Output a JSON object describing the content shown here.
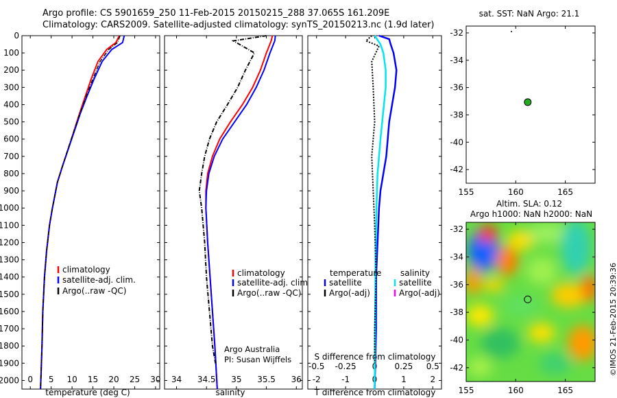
{
  "header": {
    "line1": "Argo profile: CS 5901659_250 11-Feb-2015 20150215_288 37.065S 161.209E",
    "line2": "Climatology: CARS2009. Satellite-adjusted climatology: synTS_20150213.nc (1.9d later)"
  },
  "footer": {
    "credit_line1": "Argo Australia",
    "credit_line2": "PI: Susan Wijffels",
    "imos_stamp": "©IMOS 21-Feb-2015 20:39:36"
  },
  "colors": {
    "climatology": "#ff0000",
    "satellite": "#0000ff",
    "argo": "#000000",
    "salinity_satellite": "#00e5ee",
    "salinity_argo": "#ff00ff",
    "float_marker": "#22aa22"
  },
  "chart_data": [
    {
      "type": "line",
      "title": "",
      "xlabel": "temperature (deg C)",
      "ylabel": "",
      "xlim": [
        -2,
        31
      ],
      "ylim": [
        2050,
        0
      ],
      "xticks": [
        0,
        5,
        10,
        15,
        20,
        25,
        30
      ],
      "yticks": [
        0,
        100,
        200,
        300,
        400,
        500,
        600,
        700,
        800,
        900,
        1000,
        1100,
        1200,
        1300,
        1400,
        1500,
        1600,
        1700,
        1800,
        1900,
        2000
      ],
      "legend": [
        "climatology",
        "satellite-adj. clim.",
        "Argo(..raw -QC)"
      ],
      "series": [
        {
          "name": "climatology",
          "color": "#ff0000",
          "x": [
            21.3,
            20.5,
            18.3,
            16.2,
            14.6,
            13.2,
            11.8,
            10.5,
            9.2,
            7.8,
            6.5,
            5.3,
            4.6,
            3.9,
            3.4,
            3.0,
            2.8,
            2.6,
            2.45
          ],
          "y": [
            0,
            40,
            80,
            150,
            250,
            350,
            450,
            550,
            650,
            750,
            850,
            1000,
            1100,
            1250,
            1400,
            1600,
            1800,
            1950,
            2050
          ]
        },
        {
          "name": "satellite-adj. clim.",
          "color": "#0000ff",
          "x": [
            22.5,
            22.1,
            19.5,
            17.2,
            15.3,
            13.6,
            12.0,
            10.6,
            9.2,
            7.8,
            6.5,
            5.3,
            4.6,
            3.9,
            3.4,
            3.0,
            2.8,
            2.6,
            2.45
          ],
          "y": [
            0,
            40,
            80,
            150,
            250,
            350,
            450,
            550,
            650,
            750,
            850,
            1000,
            1100,
            1250,
            1400,
            1600,
            1800,
            1950,
            2050
          ]
        },
        {
          "name": "Argo(..raw -QC)",
          "color": "#000000",
          "x": [
            21.5,
            20.9,
            18.8,
            16.7,
            15.0,
            13.4,
            11.9,
            10.5,
            9.1,
            7.8,
            6.5,
            5.3,
            4.6,
            3.9,
            3.4,
            3.0,
            2.8,
            2.6,
            2.45
          ],
          "y": [
            0,
            40,
            80,
            150,
            250,
            350,
            450,
            550,
            650,
            750,
            850,
            1000,
            1100,
            1250,
            1400,
            1600,
            1800,
            1950,
            2050
          ]
        }
      ]
    },
    {
      "type": "line",
      "title": "",
      "xlabel": "salinity",
      "ylabel": "",
      "xlim": [
        33.8,
        36.1
      ],
      "ylim": [
        2050,
        0
      ],
      "xticks": [
        34,
        34.5,
        35,
        35.5,
        36
      ],
      "legend": [
        "climatology",
        "satellite-adj. clim.",
        "Argo(..raw -QC)"
      ],
      "series": [
        {
          "name": "climatology",
          "color": "#ff0000",
          "x": [
            35.6,
            35.58,
            35.5,
            35.4,
            35.27,
            35.1,
            34.9,
            34.72,
            34.6,
            34.52,
            34.49,
            34.49,
            34.52,
            34.56,
            34.6,
            34.64,
            34.68
          ],
          "y": [
            0,
            30,
            100,
            200,
            300,
            400,
            500,
            600,
            700,
            800,
            900,
            1000,
            1200,
            1400,
            1600,
            1800,
            2050
          ]
        },
        {
          "name": "satellite-adj. clim.",
          "color": "#0000ff",
          "x": [
            35.65,
            35.64,
            35.56,
            35.46,
            35.33,
            35.17,
            34.97,
            34.77,
            34.63,
            34.54,
            34.5,
            34.49,
            34.52,
            34.56,
            34.6,
            34.64,
            34.68
          ],
          "y": [
            0,
            30,
            100,
            200,
            300,
            400,
            500,
            600,
            700,
            800,
            900,
            1000,
            1200,
            1400,
            1600,
            1800,
            2050
          ]
        },
        {
          "name": "Argo(..raw -QC)",
          "color": "#000000",
          "x": [
            35.5,
            34.95,
            35.3,
            35.15,
            35.02,
            34.85,
            34.67,
            34.55,
            34.47,
            34.42,
            34.38,
            34.42,
            34.47,
            34.5,
            34.55,
            34.6,
            34.65
          ],
          "y": [
            0,
            30,
            100,
            200,
            300,
            400,
            500,
            600,
            700,
            800,
            900,
            1000,
            1200,
            1400,
            1600,
            1800,
            1900
          ]
        }
      ]
    },
    {
      "type": "line",
      "title": "",
      "xlabel": "T difference from climatology",
      "top_axis_label": "S difference from climatology",
      "ylabel": "",
      "xlim": [
        -2.3,
        2.3
      ],
      "ylim": [
        2050,
        0
      ],
      "xticks": [
        -2,
        -1,
        0,
        1,
        2
      ],
      "top_xticks": [
        "-0.5",
        "-0.25",
        "0",
        "0.25",
        "0.5"
      ],
      "legend_headers": [
        "temperature",
        "salinity"
      ],
      "legend": [
        "satellite",
        "Argo(-adj)",
        "satellite",
        "Argo(-adj)"
      ],
      "series": [
        {
          "name": "temperature satellite",
          "color": "#0000ff",
          "x": [
            0.15,
            0.5,
            0.55,
            0.65,
            0.75,
            0.7,
            0.6,
            0.5,
            0.45,
            0.4,
            0.3,
            0.2,
            0.15,
            0.1,
            0.05,
            0.05,
            0.0
          ],
          "y": [
            0,
            20,
            50,
            100,
            200,
            300,
            400,
            500,
            600,
            700,
            800,
            900,
            1000,
            1200,
            1400,
            1700,
            2050
          ]
        },
        {
          "name": "salinity satellite",
          "color": "#00e5ee",
          "x": [
            0.0,
            0.2,
            0.3,
            0.38,
            0.38,
            0.32,
            0.26,
            0.2,
            0.15,
            0.1,
            0.06,
            0.03,
            0.0
          ],
          "y": [
            0,
            50,
            100,
            200,
            300,
            400,
            500,
            600,
            700,
            800,
            1000,
            1300,
            2050
          ]
        },
        {
          "name": "Argo(-adj)",
          "color": "#000000",
          "x": [
            -0.1,
            -0.3,
            0.15,
            -0.1,
            -0.05,
            0.0,
            -0.1,
            -0.05,
            0.0,
            0.05,
            0.0,
            0.0
          ],
          "y": [
            0,
            30,
            60,
            150,
            300,
            500,
            700,
            900,
            1100,
            1400,
            1700,
            1900
          ]
        }
      ]
    },
    {
      "type": "scatter",
      "title": "sat. SST: NaN Argo: 21.1",
      "xlim": [
        155,
        168
      ],
      "ylim": [
        -43,
        -31.5
      ],
      "xticks": [
        155,
        160,
        165
      ],
      "yticks": [
        -32,
        -34,
        -36,
        -38,
        -40,
        -42
      ],
      "points": [
        {
          "lon": 161.209,
          "lat": -37.065
        }
      ]
    },
    {
      "type": "heatmap",
      "title": "Altim. SLA: 0.12",
      "subtitle": "Argo h1000: NaN h2000: NaN",
      "xlim": [
        155,
        168
      ],
      "ylim": [
        -43,
        -31.5
      ],
      "xticks": [
        155,
        160,
        165
      ],
      "yticks": [
        -32,
        -34,
        -36,
        -38,
        -40,
        -42
      ],
      "points": [
        {
          "lon": 161.209,
          "lat": -37.065
        }
      ]
    }
  ]
}
